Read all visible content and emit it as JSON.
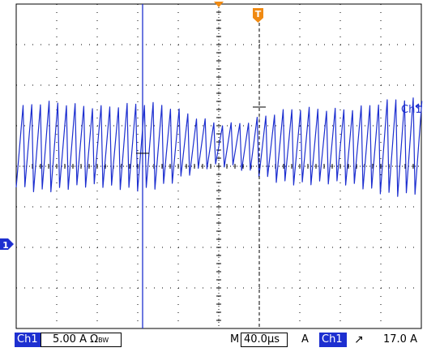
{
  "colors": {
    "trace": "#1d2fd0",
    "cursor": "#1d2fd0",
    "trigger_marker": "#f08a12",
    "grid": "#000000",
    "background": "#ffffff",
    "channel_badge_bg": "#1d2fd0",
    "channel_badge_fg": "#ffffff"
  },
  "markers": {
    "trigger_label": "T",
    "channel_ground_label": "1",
    "channel_trace_label": "Ch1",
    "icons": [
      "trigger-position-icon",
      "channel-ground-icon",
      "trigger-level-arrow-icon"
    ]
  },
  "status": {
    "channel_label": "Ch1",
    "scale": "5.00 A",
    "scale_suffix": "Ω",
    "scale_sub": "B",
    "scale_sub2": "W",
    "timebase_prefix": "M",
    "timebase": "40.0µs",
    "trigger_mode": "A",
    "trigger_channel": "Ch1",
    "trigger_slope": "↗",
    "trigger_level": "17.0 A"
  }
}
